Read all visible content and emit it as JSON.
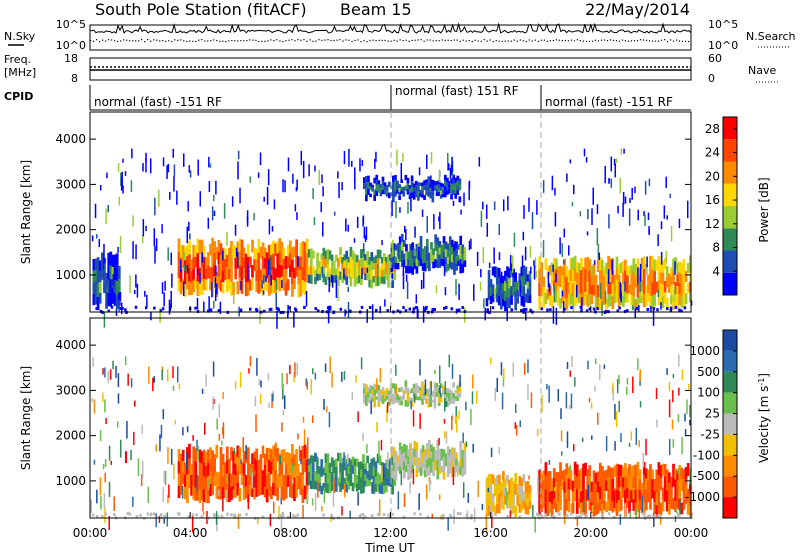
{
  "header": {
    "title": "South Pole Station (fitACF)",
    "beam": "Beam 15",
    "date": "22/May/2014"
  },
  "noise_panel": {
    "left_label": "N.Sky",
    "right_label": "N.Search",
    "left_ticks": [
      "10^5",
      "10^0"
    ],
    "right_ticks": [
      "10^5",
      "10^0"
    ]
  },
  "freq_panel": {
    "left_label_line1": "Freq.",
    "left_label_line2": "[MHz]",
    "right_label": "Nave",
    "left_ticks": [
      "18",
      "8"
    ],
    "right_ticks": [
      "60",
      "0"
    ]
  },
  "cpid_panel": {
    "label": "CPID",
    "segments": [
      {
        "start_hour": 0,
        "text": "normal (fast) -151 RF"
      },
      {
        "start_hour": 12,
        "text": "normal (fast) 151 RF"
      },
      {
        "start_hour": 18,
        "text": "normal (fast) -151 RF"
      }
    ]
  },
  "x_axis": {
    "label": "Time UT",
    "ticks": [
      "00:00",
      "04:00",
      "08:00",
      "12:00",
      "16:00",
      "20:00",
      "00:00"
    ],
    "range_hours": [
      0,
      24
    ]
  },
  "chart_data": [
    {
      "type": "heatmap",
      "panel": "power",
      "ylabel": "Slant Range [km]",
      "yticks": [
        "1000",
        "2000",
        "3000",
        "4000"
      ],
      "ylim": [
        180,
        4600
      ],
      "colorbar": {
        "label": "Power [dB]",
        "ticks": [
          "4",
          "8",
          "12",
          "16",
          "20",
          "24",
          "28"
        ],
        "range": [
          0,
          30
        ],
        "colors": [
          "#0000ff",
          "#1f4db3",
          "#2e8b57",
          "#9acd32",
          "#ffd700",
          "#ff8c00",
          "#ff4500",
          "#ff0000"
        ]
      },
      "regions": [
        {
          "hours": [
            0.1,
            1.2
          ],
          "range_km": [
            300,
            1400
          ],
          "power_db": 6
        },
        {
          "hours": [
            3.5,
            8.7
          ],
          "range_km": [
            600,
            1700
          ],
          "power_db": 26
        },
        {
          "hours": [
            8.7,
            12.2
          ],
          "range_km": [
            800,
            1500
          ],
          "power_db": 16
        },
        {
          "hours": [
            12.0,
            15.0
          ],
          "range_km": [
            1100,
            1800
          ],
          "power_db": 8
        },
        {
          "hours": [
            10.9,
            14.8
          ],
          "range_km": [
            2700,
            3100
          ],
          "power_db": 6
        },
        {
          "hours": [
            15.8,
            17.6
          ],
          "range_km": [
            300,
            1100
          ],
          "power_db": 8
        },
        {
          "hours": [
            17.9,
            24.0
          ],
          "range_km": [
            300,
            1300
          ],
          "power_db": 22
        }
      ]
    },
    {
      "type": "heatmap",
      "panel": "velocity",
      "ylabel": "Slant Range [km]",
      "yticks": [
        "1000",
        "2000",
        "3000",
        "4000"
      ],
      "ylim": [
        180,
        4600
      ],
      "colorbar": {
        "label": "Velocity [m s^-1]",
        "ticks": [
          "1000",
          "500",
          "100",
          "25",
          "-25",
          "-100",
          "-500",
          "-1000"
        ],
        "colors": [
          "#1d4ba3",
          "#2b6cb0",
          "#2e8b57",
          "#6abf4b",
          "#bbbbbb",
          "#f0c000",
          "#ff8c00",
          "#ff5a00",
          "#ff0000"
        ]
      },
      "regions": [
        {
          "hours": [
            3.5,
            8.7
          ],
          "range_km": [
            600,
            1700
          ],
          "velocity_ms": -400
        },
        {
          "hours": [
            8.7,
            12.2
          ],
          "range_km": [
            800,
            1500
          ],
          "velocity_ms": 50
        },
        {
          "hours": [
            12.0,
            15.0
          ],
          "range_km": [
            1100,
            1800
          ],
          "velocity_ms": 0
        },
        {
          "hours": [
            10.9,
            14.8
          ],
          "range_km": [
            2700,
            3100
          ],
          "velocity_ms": 20
        },
        {
          "hours": [
            15.8,
            17.6
          ],
          "range_km": [
            300,
            1100
          ],
          "velocity_ms": -50
        },
        {
          "hours": [
            17.9,
            24.0
          ],
          "range_km": [
            300,
            1300
          ],
          "velocity_ms": -350
        }
      ]
    }
  ]
}
